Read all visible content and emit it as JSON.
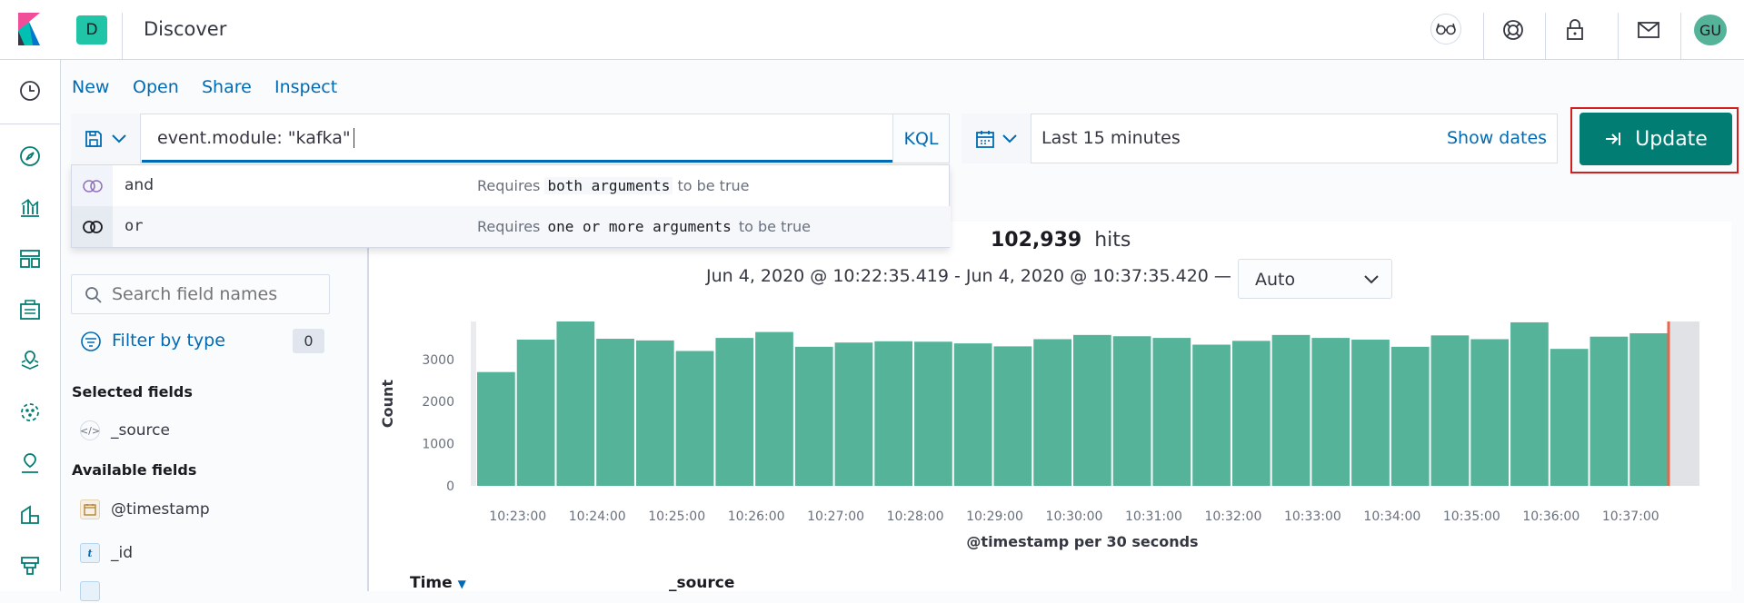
{
  "header": {
    "space_initial": "D",
    "app_title": "Discover",
    "user_initials": "GU",
    "icons": [
      "glasses-icon",
      "help-lifebuoy-icon",
      "lock-icon",
      "mail-icon"
    ]
  },
  "sidenav": {
    "items": [
      "recently-viewed-icon",
      "discover-compass-icon",
      "visualize-icon",
      "dashboard-icon",
      "canvas-icon",
      "maps-icon",
      "ml-icon",
      "infra-icon",
      "logs-icon",
      "apm-icon"
    ]
  },
  "topmenu": {
    "new": "New",
    "open": "Open",
    "share": "Share",
    "inspect": "Inspect"
  },
  "query": {
    "value": "event.module: \"kafka\"",
    "language": "KQL",
    "suggestions": [
      {
        "label": "and",
        "desc_pre": "Requires",
        "desc_code": "both arguments",
        "desc_post": "to be true"
      },
      {
        "label": "or",
        "desc_pre": "Requires",
        "desc_code": "one or more arguments",
        "desc_post": "to be true"
      }
    ]
  },
  "date_picker": {
    "range": "Last 15 minutes",
    "show_dates": "Show dates"
  },
  "update_button": "Update",
  "fields_panel": {
    "search_placeholder": "Search field names",
    "filter_by_type": "Filter by type",
    "filter_count": "0",
    "selected_title": "Selected fields",
    "selected": [
      "_source"
    ],
    "available_title": "Available fields",
    "available": [
      {
        "name": "@timestamp",
        "type": "date"
      },
      {
        "name": "_id",
        "type": "t"
      }
    ]
  },
  "hits": {
    "count": "102,939",
    "label": "hits"
  },
  "time_range_text": "Jun 4, 2020 @ 10:22:35.419 - Jun 4, 2020 @ 10:37:35.420 —",
  "interval": "Auto",
  "table_headers": {
    "time": "Time",
    "source": "_source"
  },
  "colors": {
    "bar": "#54b399",
    "accent": "#006bb4",
    "update": "#017d73",
    "now_line": "#e7664c"
  },
  "chart_data": {
    "type": "bar",
    "ylabel": "Count",
    "xlabel": "@timestamp per 30 seconds",
    "ylim": [
      0,
      3900
    ],
    "yticks": [
      0,
      1000,
      2000,
      3000
    ],
    "xticks": [
      "10:23:00",
      "10:24:00",
      "10:25:00",
      "10:26:00",
      "10:27:00",
      "10:28:00",
      "10:29:00",
      "10:30:00",
      "10:31:00",
      "10:32:00",
      "10:33:00",
      "10:34:00",
      "10:35:00",
      "10:36:00",
      "10:37:00"
    ],
    "values": [
      2700,
      3470,
      3900,
      3490,
      3450,
      3200,
      3510,
      3650,
      3300,
      3400,
      3430,
      3420,
      3380,
      3310,
      3480,
      3580,
      3550,
      3510,
      3350,
      3440,
      3580,
      3510,
      3470,
      3300,
      3570,
      3480,
      3880,
      3250,
      3540,
      3620
    ],
    "grid": false
  }
}
